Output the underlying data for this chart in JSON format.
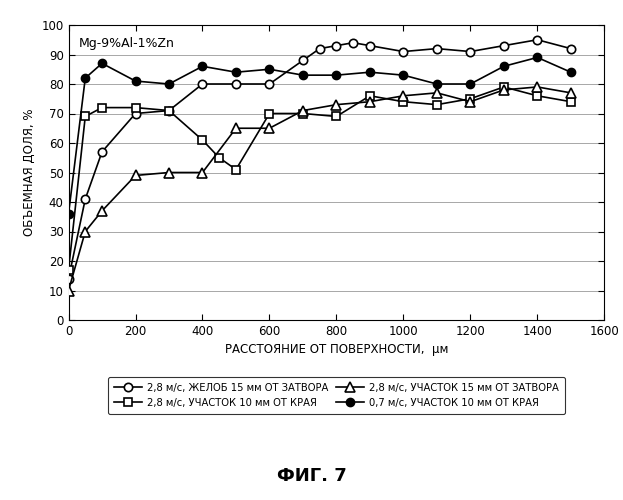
{
  "title_annotation": "Mg-9%Al-1%Zn",
  "xlabel": "РАССТОЯНИЕ ОТ ПОВЕРХНОСТИ,  μм",
  "ylabel": "ОБЪЕМНАЯ ДОЛЯ, %",
  "figure_label": "ФИГ. 7",
  "xlim": [
    0,
    1600
  ],
  "ylim": [
    0,
    100
  ],
  "xticks": [
    0,
    200,
    400,
    600,
    800,
    1000,
    1200,
    1400,
    1600
  ],
  "yticks": [
    0,
    10,
    20,
    30,
    40,
    50,
    60,
    70,
    80,
    90,
    100
  ],
  "series": [
    {
      "label": "2,8 м/с, ЖЕЛОБ 15 мм ОТ ЗАТВОРА",
      "x": [
        0,
        50,
        100,
        200,
        300,
        400,
        500,
        600,
        700,
        750,
        800,
        850,
        900,
        1000,
        1100,
        1200,
        1300,
        1400,
        1500
      ],
      "y": [
        14,
        41,
        57,
        70,
        71,
        80,
        80,
        80,
        88,
        92,
        93,
        94,
        93,
        91,
        92,
        91,
        93,
        95,
        92
      ],
      "marker": "o",
      "filled": false,
      "color": "#000000",
      "linewidth": 1.2
    },
    {
      "label": "2,8 м/с, УЧАСТОК 10 мм ОТ КРАЯ",
      "x": [
        0,
        50,
        100,
        200,
        300,
        400,
        450,
        500,
        600,
        700,
        800,
        900,
        1000,
        1100,
        1200,
        1300,
        1400,
        1500
      ],
      "y": [
        17,
        69,
        72,
        72,
        71,
        61,
        55,
        51,
        70,
        70,
        69,
        76,
        74,
        73,
        75,
        79,
        76,
        74
      ],
      "marker": "s",
      "filled": false,
      "color": "#000000",
      "linewidth": 1.2
    },
    {
      "label": "2,8 м/с, УЧАСТОК 15 мм ОТ ЗАТВОРА",
      "x": [
        0,
        50,
        100,
        200,
        300,
        400,
        500,
        600,
        700,
        800,
        900,
        1000,
        1100,
        1200,
        1300,
        1400,
        1500
      ],
      "y": [
        10,
        30,
        37,
        49,
        50,
        50,
        65,
        65,
        71,
        73,
        74,
        76,
        77,
        74,
        78,
        79,
        77
      ],
      "marker": "^",
      "filled": false,
      "color": "#000000",
      "linewidth": 1.2
    },
    {
      "label": "0,7 м/с, УЧАСТОК 10 мм ОТ КРАЯ",
      "x": [
        0,
        50,
        100,
        200,
        300,
        400,
        500,
        600,
        700,
        800,
        900,
        1000,
        1100,
        1200,
        1300,
        1400,
        1500
      ],
      "y": [
        36,
        82,
        87,
        81,
        80,
        86,
        84,
        85,
        83,
        83,
        84,
        83,
        80,
        80,
        86,
        89,
        84
      ],
      "marker": "o",
      "filled": true,
      "color": "#000000",
      "linewidth": 1.2
    }
  ],
  "background_color": "#ffffff",
  "font_color": "#000000"
}
